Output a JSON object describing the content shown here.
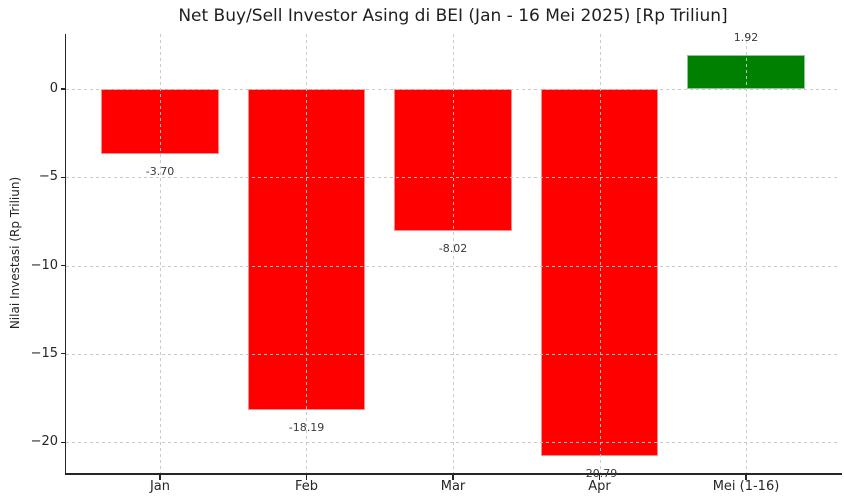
{
  "page": {
    "background": "#ffffff"
  },
  "chart_data": {
    "type": "bar",
    "title": "Net Buy/Sell Investor Asing di BEI (Jan - 16 Mei 2025) [Rp Triliun]",
    "xlabel": "",
    "ylabel": "Nilai Investasi (Rp Triliun)",
    "categories": [
      "Jan",
      "Feb",
      "Mar",
      "Apr",
      "Mei (1-16)"
    ],
    "values": [
      -3.7,
      -18.19,
      -8.02,
      -20.79,
      1.92
    ],
    "value_labels": [
      "-3.70",
      "-18.19",
      "-8.02",
      "-20.79",
      "1.92"
    ],
    "yticks": [
      0,
      -5,
      -10,
      -15,
      -20
    ],
    "ytick_labels": [
      "0",
      "−5",
      "−10",
      "−15",
      "−20"
    ],
    "ylim": [
      -21.75,
      3.12
    ],
    "legend": "none",
    "grid": {
      "horizontal": true,
      "vertical": true,
      "style": "dotted",
      "above_bars": true
    },
    "colors": {
      "positive_bar": "#008000",
      "negative_bar": "#ff0000",
      "grid": "#c7c7c7",
      "axis": "#262626",
      "title_text": "#1f1f1f",
      "tick_text": "#262626",
      "value_label_text": "#3a3a3a"
    }
  }
}
